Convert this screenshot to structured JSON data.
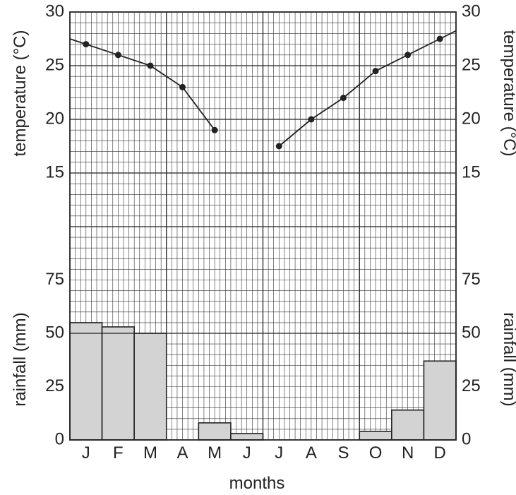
{
  "chart_data": {
    "type": "climate_graph",
    "xlabel": "months",
    "categories": [
      "J",
      "F",
      "M",
      "A",
      "M",
      "J",
      "J",
      "A",
      "S",
      "O",
      "N",
      "D"
    ],
    "temperature": {
      "type": "line",
      "ylabel_left": "temperature (°C)",
      "ylabel_right": "temperature (°C)",
      "ylim": [
        10,
        30
      ],
      "ticks": [
        "15",
        "20",
        "25",
        "30"
      ],
      "values": [
        27,
        26,
        25,
        23,
        19,
        null,
        17.5,
        20,
        22,
        24.5,
        26,
        27.5
      ]
    },
    "rainfall": {
      "type": "bar",
      "ylabel_left": "rainfall (mm)",
      "ylabel_right": "rainfall (mm)",
      "ylim": [
        0,
        100
      ],
      "ticks": [
        "0",
        "25",
        "50",
        "75"
      ],
      "values": [
        55,
        53,
        50,
        0,
        8,
        3,
        0,
        0,
        0,
        4,
        14,
        37
      ],
      "bar_color": "#d3d3d3"
    },
    "grid": true
  }
}
